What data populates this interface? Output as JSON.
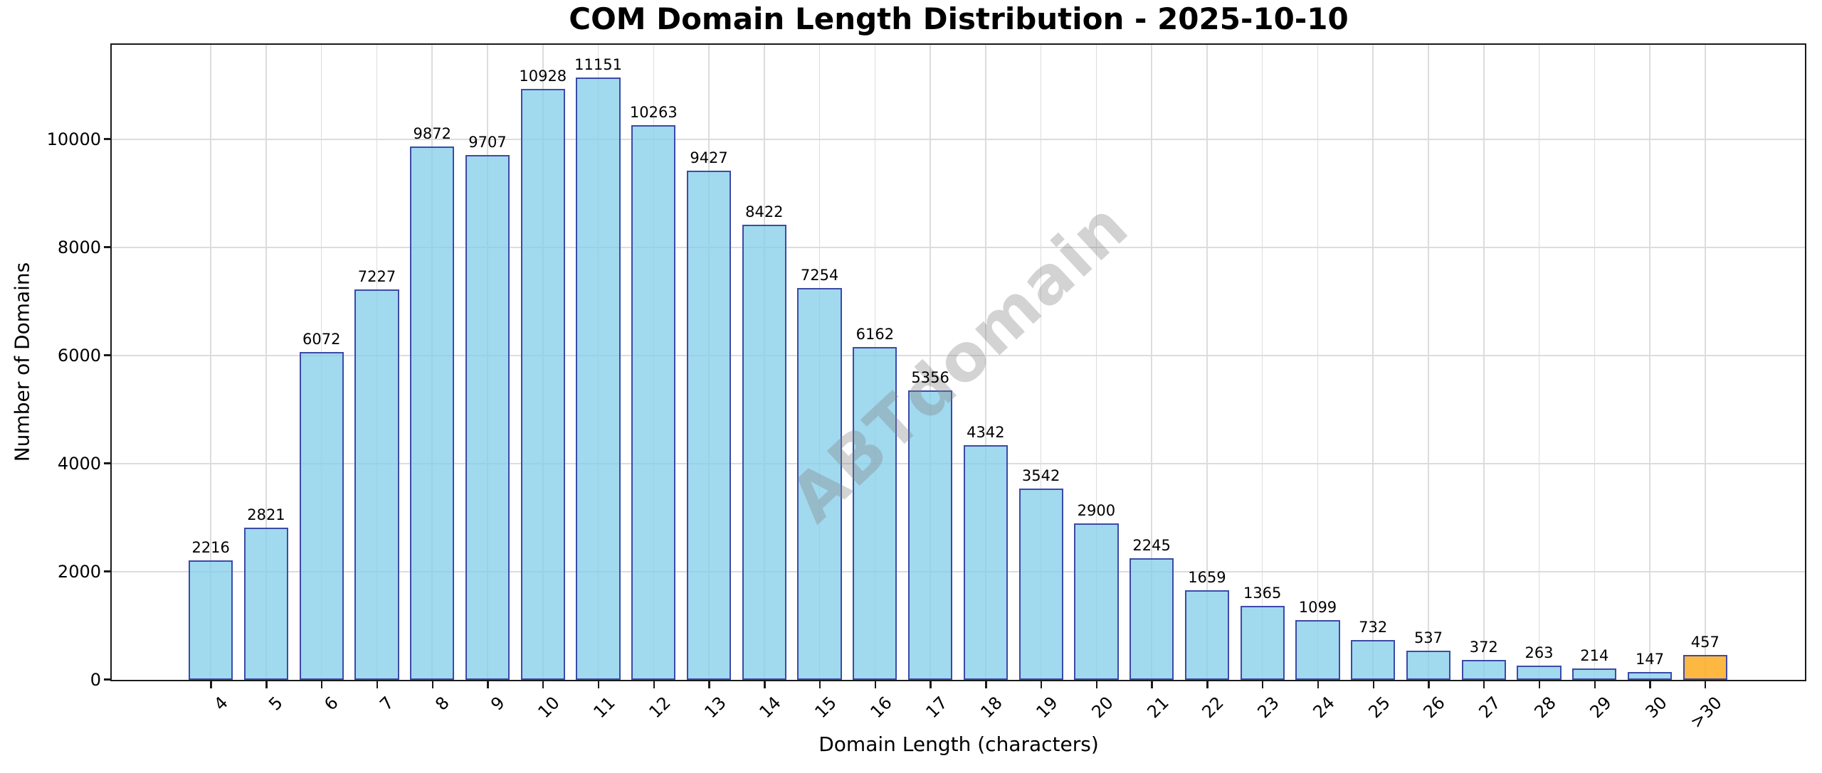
{
  "chart_data": {
    "type": "bar",
    "title": "COM Domain Length Distribution - 2025-10-10",
    "xlabel": "Domain Length (characters)",
    "ylabel": "Number of Domains",
    "categories": [
      "4",
      "5",
      "6",
      "7",
      "8",
      "9",
      "10",
      "11",
      "12",
      "13",
      "14",
      "15",
      "16",
      "17",
      "18",
      "19",
      "20",
      "21",
      "22",
      "23",
      "24",
      "25",
      "26",
      "27",
      "28",
      "29",
      "30",
      ">30"
    ],
    "values": [
      2216,
      2821,
      6072,
      7227,
      9872,
      9707,
      10928,
      11151,
      10263,
      9427,
      8422,
      7254,
      6162,
      5356,
      4342,
      3542,
      2900,
      2245,
      1659,
      1365,
      1099,
      732,
      537,
      372,
      263,
      214,
      147,
      457
    ],
    "yticks": [
      0,
      2000,
      4000,
      6000,
      8000,
      10000
    ],
    "ylim": [
      0,
      11737
    ],
    "grid": true,
    "legend_position": "none",
    "bar_fill": "rgba(135,206,235,0.78)",
    "bar_edge": "#3c4aa8",
    "highlight_index": 27,
    "highlight_fill": "rgba(252,171,30,0.85)",
    "grid_color": "#dcdcdc",
    "watermark": "ABTdomain"
  }
}
